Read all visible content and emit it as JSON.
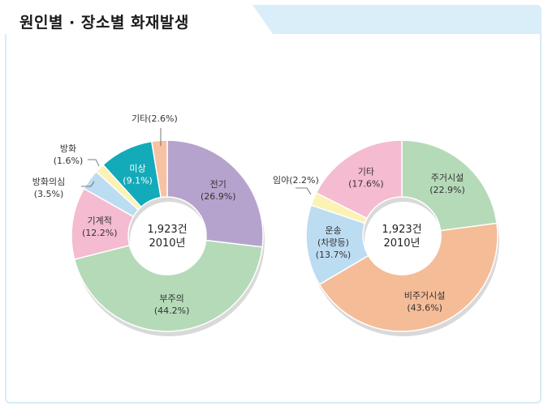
{
  "title": "원인별 · 장소별 화재발생",
  "chart_data": [
    {
      "type": "pie",
      "center_lines": [
        "1,923건",
        "2010년"
      ],
      "slices": [
        {
          "label": "전기",
          "pct_label": "(26.9%)",
          "value": 26.9,
          "color": "#b6a3cd"
        },
        {
          "label": "부주의",
          "pct_label": "(44.2%)",
          "value": 44.2,
          "color": "#b5dab8"
        },
        {
          "label": "기계적",
          "pct_label": "(12.2%)",
          "value": 12.2,
          "color": "#f5bbd0"
        },
        {
          "label": "방화의심",
          "pct_label": "(3.5%)",
          "value": 3.5,
          "color": "#bcdcf2"
        },
        {
          "label": "방화",
          "pct_label": "(1.6%)",
          "value": 1.6,
          "color": "#fbf2b3"
        },
        {
          "label": "미상",
          "pct_label": "(9.1%)",
          "value": 9.1,
          "color": "#13aab9"
        },
        {
          "label": "기타",
          "pct_label": "(2.6%)",
          "value": 2.6,
          "color": "#f6c2a3"
        }
      ]
    },
    {
      "type": "pie",
      "center_lines": [
        "1,923건",
        "2010년"
      ],
      "slices": [
        {
          "label": "주거시설",
          "pct_label": "(22.9%)",
          "value": 22.9,
          "color": "#b5dab8"
        },
        {
          "label": "비주거시설",
          "pct_label": "(43.6%)",
          "value": 43.6,
          "color": "#f5bc98"
        },
        {
          "label": "운송",
          "pct_label2": "(차량등)",
          "pct_label": "(13.7%)",
          "value": 13.7,
          "color": "#bcdcf2"
        },
        {
          "label": "임야",
          "pct_label": "(2.2%)",
          "value": 2.2,
          "color": "#fbf2b3"
        },
        {
          "label": "기타",
          "pct_label": "(17.6%)",
          "value": 17.6,
          "color": "#f5bbd0"
        }
      ]
    }
  ]
}
